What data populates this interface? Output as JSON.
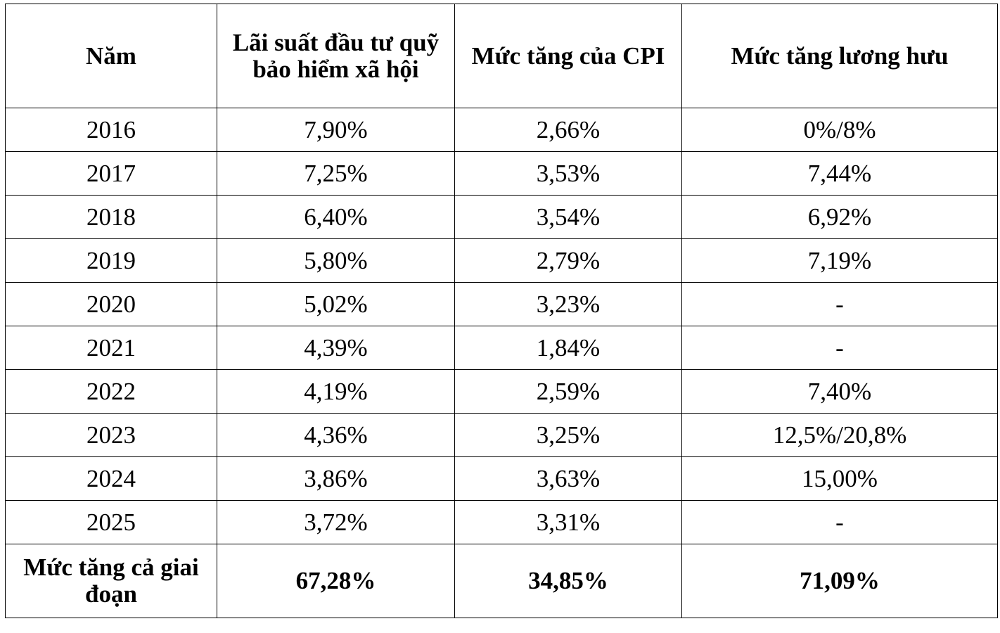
{
  "table": {
    "headers": [
      "Năm",
      "Lãi suất đầu tư quỹ bảo hiểm xã hội",
      "Mức tăng của CPI",
      "Mức tăng lương hưu"
    ],
    "rows": [
      [
        "2016",
        "7,90%",
        "2,66%",
        "0%/8%"
      ],
      [
        "2017",
        "7,25%",
        "3,53%",
        "7,44%"
      ],
      [
        "2018",
        "6,40%",
        "3,54%",
        "6,92%"
      ],
      [
        "2019",
        "5,80%",
        "2,79%",
        "7,19%"
      ],
      [
        "2020",
        "5,02%",
        "3,23%",
        "-"
      ],
      [
        "2021",
        "4,39%",
        "1,84%",
        "-"
      ],
      [
        "2022",
        "4,19%",
        "2,59%",
        "7,40%"
      ],
      [
        "2023",
        "4,36%",
        "3,25%",
        "12,5%/20,8%"
      ],
      [
        "2024",
        "3,86%",
        "3,63%",
        "15,00%"
      ],
      [
        "2025",
        "3,72%",
        "3,31%",
        "-"
      ]
    ],
    "total": [
      "Mức tăng cả giai đoạn",
      "67,28%",
      "34,85%",
      "71,09%"
    ]
  }
}
